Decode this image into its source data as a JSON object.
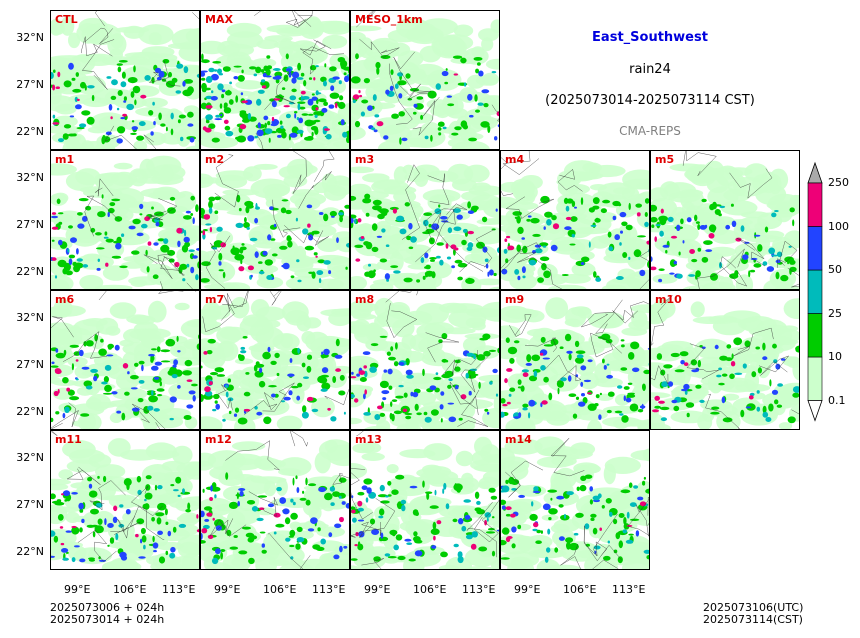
{
  "header": {
    "region": "East_Southwest",
    "variable": "rain24",
    "period": "(2025073014-2025073114 CST)",
    "source": "CMA-REPS"
  },
  "panels": [
    {
      "label": "CTL",
      "row": 0,
      "col": 0,
      "intensity": 1.0
    },
    {
      "label": "MAX",
      "row": 0,
      "col": 1,
      "intensity": 2.0
    },
    {
      "label": "MESO_1km",
      "row": 0,
      "col": 2,
      "intensity": 0.8
    },
    {
      "label": "m1",
      "row": 1,
      "col": 0,
      "intensity": 1.0
    },
    {
      "label": "m2",
      "row": 1,
      "col": 1,
      "intensity": 1.0
    },
    {
      "label": "m3",
      "row": 1,
      "col": 2,
      "intensity": 1.0
    },
    {
      "label": "m4",
      "row": 1,
      "col": 3,
      "intensity": 0.9
    },
    {
      "label": "m5",
      "row": 1,
      "col": 4,
      "intensity": 0.9
    },
    {
      "label": "m6",
      "row": 2,
      "col": 0,
      "intensity": 1.0
    },
    {
      "label": "m7",
      "row": 2,
      "col": 1,
      "intensity": 0.9
    },
    {
      "label": "m8",
      "row": 2,
      "col": 2,
      "intensity": 1.0
    },
    {
      "label": "m9",
      "row": 2,
      "col": 3,
      "intensity": 1.0
    },
    {
      "label": "m10",
      "row": 2,
      "col": 4,
      "intensity": 0.8
    },
    {
      "label": "m11",
      "row": 3,
      "col": 0,
      "intensity": 1.0
    },
    {
      "label": "m12",
      "row": 3,
      "col": 1,
      "intensity": 1.0
    },
    {
      "label": "m13",
      "row": 3,
      "col": 2,
      "intensity": 1.0
    },
    {
      "label": "m14",
      "row": 3,
      "col": 3,
      "intensity": 1.0
    }
  ],
  "axes": {
    "lat_ticks": [
      "32°N",
      "27°N",
      "22°N"
    ],
    "lon_ticks": [
      "99°E",
      "106°E",
      "113°E"
    ]
  },
  "colorbar": {
    "levels": [
      "0.1",
      "10",
      "25",
      "50",
      "100",
      "250"
    ],
    "colors": [
      "#ccffcc",
      "#00cc00",
      "#00bbbb",
      "#2244ff",
      "#ee0077"
    ],
    "under_color": "#ffffff",
    "over_color": "#aaaaaa"
  },
  "footer": {
    "init_utc": "2025073006  +  024h",
    "init_cst": "2025073014  +  024h",
    "valid_utc": "2025073106(UTC)",
    "valid_cst": "2025073114(CST)"
  },
  "colors": {
    "panel_label": "#e00000",
    "title": "#0000dd",
    "source": "#808080"
  }
}
